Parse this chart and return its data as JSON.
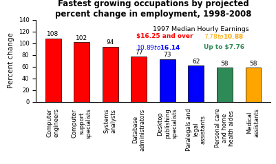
{
  "categories": [
    "Computer\nengineers",
    "Computer\nsupport\nspecialists",
    "Systems\nanalysts",
    "Database\nadministrators",
    "Desktop\npublishing\nspecialists",
    "Paralegals and\nlegal\nassistants",
    "Personal care\nand home\nhealth aides",
    "Medical\nassistants"
  ],
  "values": [
    108,
    102,
    94,
    77,
    73,
    62,
    58,
    58
  ],
  "bar_colors": [
    "#ff0000",
    "#ff0000",
    "#ff0000",
    "#ff0000",
    "#0000ff",
    "#0000ff",
    "#2e8b57",
    "#ffa500"
  ],
  "title": "Fastest growing occupations by projected\npercent change in employment, 1998-2008",
  "ylabel": "Percent change",
  "ylim": [
    0,
    140
  ],
  "yticks": [
    0,
    20,
    40,
    60,
    80,
    100,
    120,
    140
  ],
  "legend_title": "1997 Median Hourly Earnings",
  "legend_items": [
    {
      "label": "$16.25 and over",
      "color": "#ff0000"
    },
    {
      "label": "$7.78 to $10.88",
      "color": "#ffa500"
    },
    {
      "label": "$10.89 to $16.14",
      "color": "#0000ff"
    },
    {
      "label": "Up to $7.76",
      "color": "#2e8b57"
    }
  ],
  "title_fontsize": 8.5,
  "axis_label_fontsize": 7.5,
  "bar_label_fontsize": 6.5,
  "tick_fontsize": 6,
  "legend_fontsize": 6.5,
  "legend_title_fontsize": 6.8
}
